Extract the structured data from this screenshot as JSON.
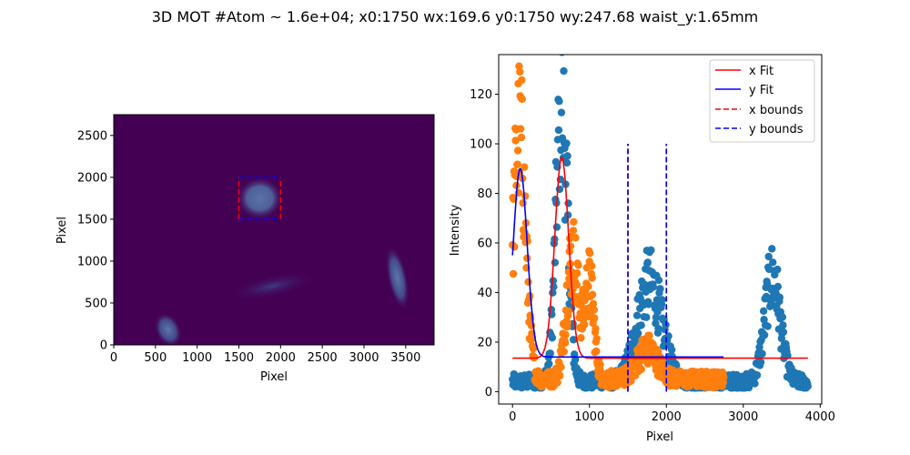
{
  "suptitle": "3D MOT #Atom ~ 1.6e+04; x0:1750 wx:169.6 y0:1750 wy:247.68 waist_y:1.65mm",
  "colors": {
    "image_bg": "#440154",
    "x_points": "#1f77b4",
    "y_points": "#ff7f0e",
    "x_fit": "#ff0000",
    "y_fit": "#0000ff"
  },
  "chart_data": [
    {
      "type": "heatmap",
      "xlabel": "Pixel",
      "ylabel": "Pixel",
      "xlim": [
        0,
        3840
      ],
      "ylim": [
        0,
        2748
      ],
      "xticks": [
        0,
        500,
        1000,
        1500,
        2000,
        2500,
        3000,
        3500
      ],
      "yticks": [
        0,
        500,
        1000,
        1500,
        2000,
        2500
      ],
      "colormap": "viridis",
      "bright_regions": [
        {
          "x": 1750,
          "y": 1750,
          "intensity": "high"
        },
        {
          "x": 650,
          "y": 180,
          "intensity": "medium"
        },
        {
          "x": 3400,
          "y": 800,
          "intensity": "medium"
        },
        {
          "x": 1900,
          "y": 700,
          "intensity": "low"
        }
      ],
      "roi_box": {
        "x_bounds": [
          1500,
          2000
        ],
        "y_bounds": [
          1500,
          2000
        ]
      }
    },
    {
      "type": "scatter",
      "xlabel": "Pixel",
      "ylabel": "Intensity",
      "xlim": [
        -180,
        4020
      ],
      "ylim": [
        -5,
        136
      ],
      "xticks": [
        0,
        1000,
        2000,
        3000,
        4000
      ],
      "yticks": [
        0,
        20,
        40,
        60,
        80,
        100,
        120
      ],
      "legend_position": "top-right",
      "legend": [
        "x Fit",
        "y Fit",
        "x bounds",
        "y bounds"
      ],
      "x_profile": {
        "range": [
          0,
          3840
        ],
        "baseline": 4,
        "peaks": [
          {
            "center": 640,
            "sigma": 75,
            "amplitude": 112
          },
          {
            "center": 1780,
            "sigma": 160,
            "amplitude": 40
          },
          {
            "center": 3380,
            "sigma": 100,
            "amplitude": 42
          }
        ]
      },
      "y_profile": {
        "range": [
          0,
          2748
        ],
        "baseline": 5,
        "peaks": [
          {
            "center": 90,
            "sigma": 80,
            "amplitude": 100
          },
          {
            "center": 780,
            "sigma": 80,
            "amplitude": 50
          },
          {
            "center": 1000,
            "sigma": 60,
            "amplitude": 38
          },
          {
            "center": 1750,
            "sigma": 130,
            "amplitude": 12
          }
        ]
      },
      "x_fit": {
        "x_range": [
          0,
          3840
        ],
        "center": 640,
        "sigma": 90,
        "amplitude": 81,
        "offset": 13.5
      },
      "y_fit": {
        "x_range": [
          0,
          2748
        ],
        "center": 100,
        "sigma": 90,
        "amplitude": 76,
        "offset": 14
      },
      "x_bounds": {
        "x": [
          1500,
          2000
        ],
        "y_range": [
          0,
          100
        ]
      },
      "y_bounds": {
        "x": [
          1500,
          2000
        ],
        "y_range": [
          0,
          100
        ]
      }
    }
  ]
}
